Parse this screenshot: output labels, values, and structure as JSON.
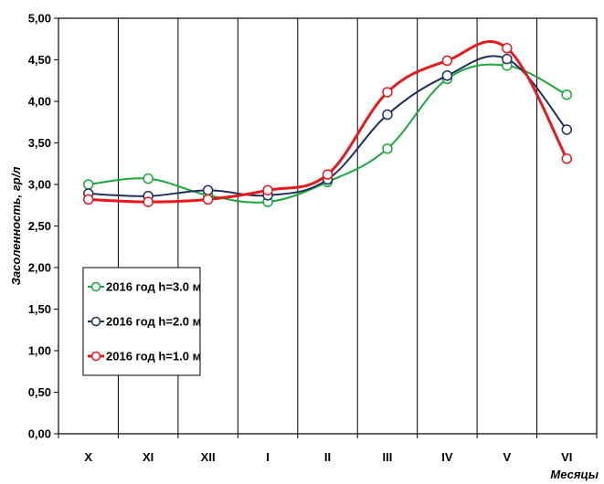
{
  "chart_data": {
    "type": "line",
    "xlabel": "Месяцы",
    "ylabel": "Засоленность, гр/л",
    "categories": [
      "X",
      "XI",
      "XII",
      "I",
      "II",
      "III",
      "IV",
      "V",
      "VI"
    ],
    "ylim": [
      0,
      5
    ],
    "yticks": [
      "0,00",
      "0,50",
      "1,00",
      "1,50",
      "2,00",
      "2,50",
      "3,00",
      "3,50",
      "4,00",
      "4,50",
      "5,00"
    ],
    "grid": "vertical",
    "legend_position": "left-center",
    "series": [
      {
        "name": "2016 год h=3.0 м",
        "color": "#1aa83a",
        "values": [
          3.0,
          3.07,
          2.87,
          2.79,
          3.03,
          3.43,
          4.27,
          4.43,
          4.08
        ]
      },
      {
        "name": "2016 год h=2.0 м",
        "color": "#1f2e5c",
        "values": [
          2.89,
          2.86,
          2.93,
          2.87,
          3.06,
          3.84,
          4.31,
          4.51,
          3.66
        ]
      },
      {
        "name": "2016 год h=1.0 м",
        "color": "#e8191c",
        "values": [
          2.82,
          2.79,
          2.82,
          2.93,
          3.12,
          4.11,
          4.49,
          4.64,
          3.31
        ]
      }
    ]
  }
}
